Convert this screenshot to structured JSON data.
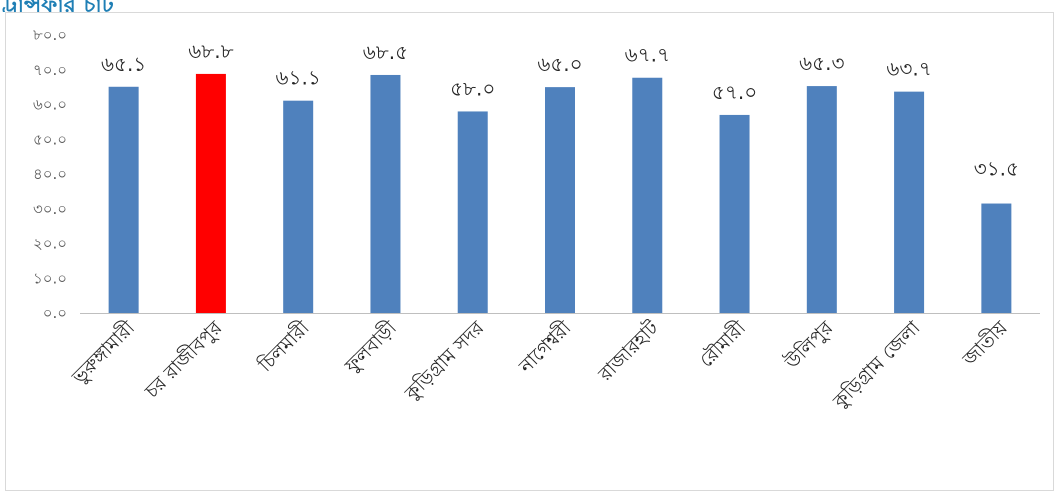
{
  "header": {
    "fragment": "ট্রান্সফার চার্ট"
  },
  "chart_data": {
    "type": "bar",
    "categories": [
      "ভুরুঙ্গামারী",
      "চর রাজীবপুর",
      "চিলমারী",
      "ফুলবাড়ী",
      "কুড়িগ্রাম সদর",
      "নাগেশ্বরী",
      "রাজারহাট",
      "রৌমারী",
      "উলিপুর",
      "কুড়িগ্রাম জেলা",
      "জাতীয়"
    ],
    "values": [
      65.1,
      68.8,
      61.1,
      68.5,
      58.0,
      65.0,
      67.7,
      57.0,
      65.3,
      63.7,
      31.5
    ],
    "value_labels": [
      "৬৫.১",
      "৬৮.৮",
      "৬১.১",
      "৬৮.৫",
      "৫৮.০",
      "৬৫.০",
      "৬৭.৭",
      "৫৭.০",
      "৬৫.৩",
      "৬৩.৭",
      "৩১.৫"
    ],
    "ylim": [
      0,
      80
    ],
    "y_ticks": [
      0,
      10,
      20,
      30,
      40,
      50,
      60,
      70,
      80
    ],
    "y_tick_labels": [
      "০.০",
      "১০.০",
      "২০.০",
      "৩০.০",
      "৪০.০",
      "৫০.০",
      "৬০.০",
      "৭০.০",
      "৮০.০"
    ],
    "grid": false,
    "title": "",
    "xlabel": "",
    "ylabel": "",
    "colors": {
      "default": "#4f81bd",
      "highlight": "#ff0000"
    },
    "highlight_index": 1
  }
}
